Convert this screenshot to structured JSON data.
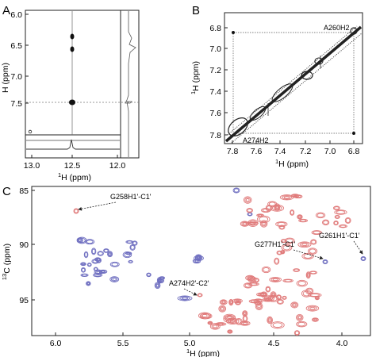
{
  "panel_a": {
    "letter": "A",
    "xlabel_sup": "1",
    "xlabel": "H (ppm)",
    "ylabel": "H (ppm)",
    "xticks": [
      "13.0",
      "12.5",
      "12.0"
    ],
    "yticks": [
      "6.0",
      "6.5",
      "7.0",
      "7.5"
    ]
  },
  "panel_b": {
    "letter": "B",
    "xlabel_sup": "1",
    "xlabel": "H (ppm)",
    "ylabel_sup": "1",
    "ylabel": "H (ppm)",
    "xticks": [
      "7.8",
      "7.6",
      "7.4",
      "7.2",
      "7.0",
      "6.8"
    ],
    "yticks": [
      "6.8",
      "7.0",
      "7.2",
      "7.4",
      "7.6",
      "7.8"
    ],
    "annotations": [
      "A260H2",
      "A274H2"
    ]
  },
  "panel_c": {
    "letter": "C",
    "xlabel_sup": "1",
    "xlabel": "H (ppm)",
    "ylabel_sup": "13",
    "ylabel": "C (ppm)",
    "xticks": [
      "6.0",
      "5.5",
      "5.0",
      "4.5",
      "4.0"
    ],
    "yticks": [
      "85",
      "90",
      "95"
    ],
    "annotations": [
      "G258H1'-C1'",
      "G277H1'-C1'",
      "G261H1'-C1'",
      "A274H2'-C2'"
    ],
    "colors": {
      "blue": "#6f6fc0",
      "red": "#e07a7a"
    }
  },
  "chart_data": [
    {
      "panel": "A",
      "type": "scatter",
      "x_axis": {
        "ticks": [
          13.0,
          12.5,
          12.0
        ],
        "reversed": true
      },
      "y_axis": {
        "ticks": [
          6.0,
          6.5,
          7.0,
          7.5
        ],
        "reversed": true
      },
      "peaks": [
        {
          "x": 12.5,
          "y": 6.37
        },
        {
          "x": 12.5,
          "y": 6.55
        },
        {
          "x": 12.5,
          "y": 7.45
        }
      ]
    },
    {
      "panel": "B",
      "type": "scatter",
      "x_axis": {
        "ticks": [
          7.8,
          7.6,
          7.4,
          7.2,
          7.0,
          6.8
        ],
        "reversed": true
      },
      "y_axis": {
        "ticks": [
          6.8,
          7.0,
          7.2,
          7.4,
          7.6,
          7.8
        ],
        "reversed": true
      },
      "cross_peaks": [
        {
          "x": 7.81,
          "y": 6.83,
          "label": ""
        },
        {
          "x": 6.83,
          "y": 6.83,
          "label": "A260H2"
        },
        {
          "x": 6.83,
          "y": 7.81,
          "label": ""
        },
        {
          "x": 7.81,
          "y": 7.81,
          "label": "A274H2"
        }
      ]
    },
    {
      "panel": "C",
      "type": "scatter",
      "x_axis": {
        "ticks": [
          6.0,
          5.5,
          5.0,
          4.5,
          4.0
        ],
        "range": [
          6.2,
          3.8
        ],
        "reversed": true
      },
      "y_axis": {
        "ticks": [
          85,
          90,
          95
        ],
        "range": [
          85,
          98
        ],
        "reversed": true
      },
      "labeled_peaks": [
        {
          "label": "G258H1'-C1'",
          "x": 5.9,
          "y": 86.8
        },
        {
          "label": "G277H1'-C1'",
          "x": 4.12,
          "y": 91.4
        },
        {
          "label": "G261H1'-C1'",
          "x": 3.84,
          "y": 91.2
        },
        {
          "label": "A274H2'-C2'",
          "x": 5.17,
          "y": 96.8
        }
      ]
    }
  ]
}
